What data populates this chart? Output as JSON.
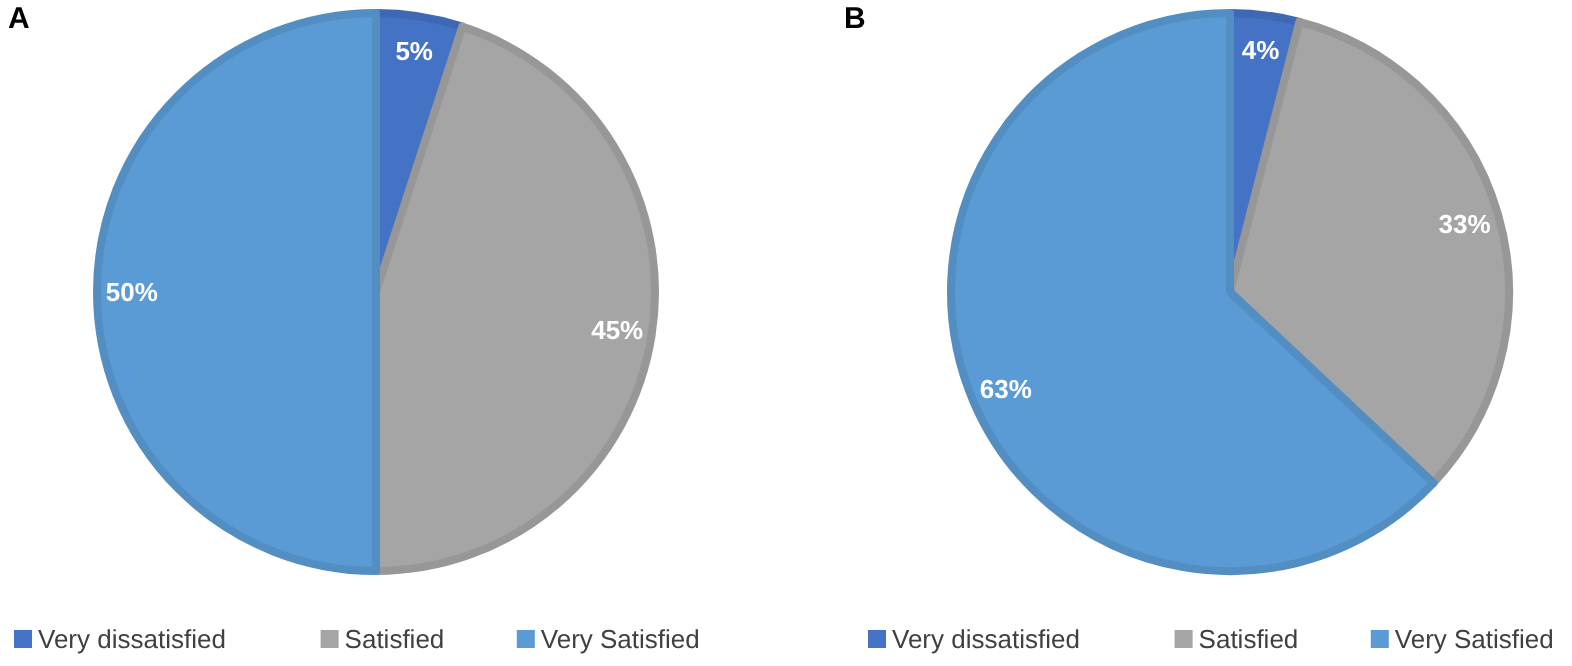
{
  "chart_data": [
    {
      "type": "pie",
      "title": "A",
      "categories": [
        "Very dissatisfied",
        "Satisfied",
        "Very Satisfied"
      ],
      "values": [
        5,
        45,
        50
      ],
      "value_labels": [
        "5%",
        "45%",
        "50%"
      ],
      "colors": [
        "#4472c4",
        "#a5a5a5",
        "#5b9bd5"
      ],
      "legend": "bottom"
    },
    {
      "type": "pie",
      "title": "B",
      "categories": [
        "Very dissatisfied",
        "Satisfied",
        "Very Satisfied"
      ],
      "values": [
        4,
        33,
        63
      ],
      "value_labels": [
        "4%",
        "33%",
        "63%"
      ],
      "colors": [
        "#4472c4",
        "#a5a5a5",
        "#5b9bd5"
      ],
      "legend": "bottom"
    }
  ]
}
